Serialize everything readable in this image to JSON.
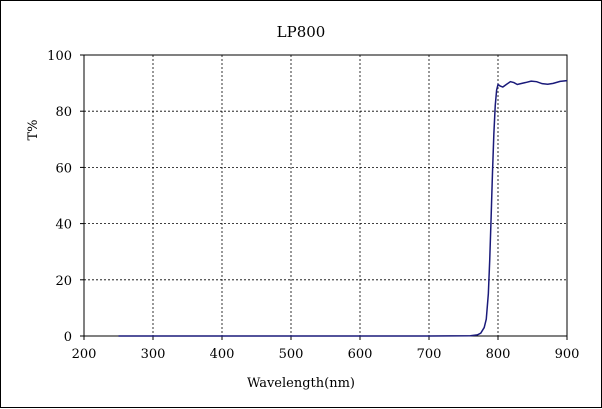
{
  "chart_data": {
    "type": "line",
    "title": "LP800",
    "xlabel": "Wavelength(nm)",
    "ylabel": "T%",
    "xlim": [
      200,
      900
    ],
    "ylim": [
      0,
      100
    ],
    "x_ticks": [
      200,
      300,
      400,
      500,
      600,
      700,
      800,
      900
    ],
    "y_ticks": [
      0,
      20,
      40,
      60,
      80,
      100
    ],
    "x_tick_labels": [
      "200",
      "300",
      "400",
      "500",
      "600",
      "700",
      "800",
      "900"
    ],
    "y_tick_labels": [
      "0",
      "20",
      "40",
      "60",
      "80",
      "100"
    ],
    "grid": true,
    "series": [
      {
        "color": "#1a1a7a",
        "points": [
          [
            250,
            0
          ],
          [
            300,
            0
          ],
          [
            400,
            0
          ],
          [
            500,
            0
          ],
          [
            600,
            0
          ],
          [
            700,
            0
          ],
          [
            760,
            0.1
          ],
          [
            770,
            0.4
          ],
          [
            775,
            1.0
          ],
          [
            780,
            3
          ],
          [
            783,
            6
          ],
          [
            786,
            15
          ],
          [
            788,
            27
          ],
          [
            790,
            42
          ],
          [
            792,
            58
          ],
          [
            794,
            72
          ],
          [
            796,
            82
          ],
          [
            798,
            87.5
          ],
          [
            800,
            89.5
          ],
          [
            803,
            89
          ],
          [
            807,
            88.6
          ],
          [
            812,
            89.5
          ],
          [
            818,
            90.5
          ],
          [
            823,
            90.2
          ],
          [
            828,
            89.5
          ],
          [
            833,
            89.8
          ],
          [
            840,
            90.2
          ],
          [
            848,
            90.7
          ],
          [
            856,
            90.5
          ],
          [
            864,
            89.8
          ],
          [
            872,
            89.6
          ],
          [
            880,
            89.9
          ],
          [
            890,
            90.6
          ],
          [
            900,
            90.9
          ]
        ]
      }
    ]
  }
}
